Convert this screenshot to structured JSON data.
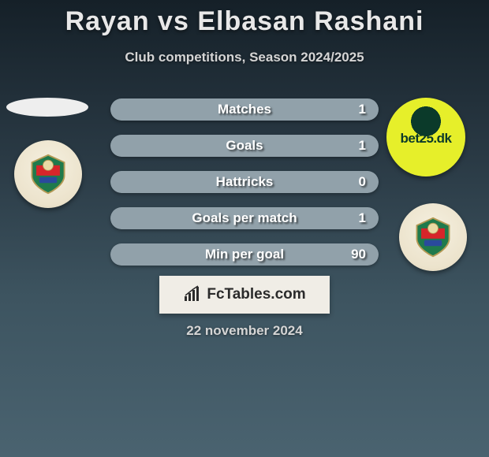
{
  "title": "Rayan vs Elbasan Rashani",
  "subtitle": "Club competitions, Season 2024/2025",
  "date": "22 november 2024",
  "brand": "FcTables.com",
  "bet_logo_text": "bet25.dk",
  "colors": {
    "bar_bg": "#5a6d77",
    "bar_fill": "#91a1aa",
    "text_light": "#e8e8e8",
    "panel_bg": "#f0ede6"
  },
  "stats": [
    {
      "label": "Matches",
      "value": "1",
      "fill_pct": 100
    },
    {
      "label": "Goals",
      "value": "1",
      "fill_pct": 100
    },
    {
      "label": "Hattricks",
      "value": "0",
      "fill_pct": 100
    },
    {
      "label": "Goals per match",
      "value": "1",
      "fill_pct": 100
    },
    {
      "label": "Min per goal",
      "value": "90",
      "fill_pct": 100
    }
  ],
  "badges": {
    "left": {
      "name": "elche-badge",
      "primary": "#d7252a",
      "secondary": "#1f7a4c",
      "base": "#ece3cc"
    },
    "right": {
      "name": "elche-badge",
      "primary": "#d7252a",
      "secondary": "#1f7a4c",
      "base": "#ece3cc"
    }
  }
}
